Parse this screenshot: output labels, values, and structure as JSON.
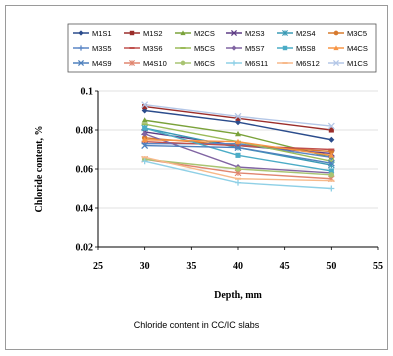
{
  "chart_data": {
    "type": "line",
    "title": "",
    "xlabel": "Depth, mm",
    "ylabel": "Chloride content, %",
    "xlim": [
      25,
      55
    ],
    "ylim": [
      0.02,
      0.1
    ],
    "xticks": [
      "25",
      "30",
      "35",
      "40",
      "45",
      "50",
      "55"
    ],
    "yticks": [
      "0.02",
      "0.04",
      "0.06",
      "0.08",
      "0.1"
    ],
    "grid": "horizontal",
    "legend_position": "top",
    "x": [
      30,
      40,
      50
    ],
    "series": [
      {
        "name": "M1S1",
        "color": "#2b4c8c",
        "marker": "diamond",
        "values": [
          0.09,
          0.084,
          0.075
        ]
      },
      {
        "name": "M1S2",
        "color": "#9b2d2a",
        "marker": "square",
        "values": [
          0.092,
          0.086,
          0.08
        ]
      },
      {
        "name": "M2CS",
        "color": "#7aa23a",
        "marker": "triangle",
        "values": [
          0.085,
          0.078,
          0.066
        ]
      },
      {
        "name": "M2S3",
        "color": "#5e3c85",
        "marker": "x",
        "values": [
          0.079,
          0.072,
          0.068
        ]
      },
      {
        "name": "M2S4",
        "color": "#3a9ab5",
        "marker": "star",
        "values": [
          0.081,
          0.071,
          0.062
        ]
      },
      {
        "name": "M3C5",
        "color": "#d77a2e",
        "marker": "circle",
        "values": [
          0.076,
          0.072,
          0.069
        ]
      },
      {
        "name": "M3S5",
        "color": "#5b86c5",
        "marker": "plus",
        "values": [
          0.073,
          0.073,
          0.066
        ]
      },
      {
        "name": "M3S6",
        "color": "#c0504d",
        "marker": "dash",
        "values": [
          0.074,
          0.072,
          0.07
        ]
      },
      {
        "name": "M5CS",
        "color": "#9bbb59",
        "marker": "dash",
        "values": [
          0.083,
          0.074,
          0.064
        ]
      },
      {
        "name": "M5S7",
        "color": "#8064a2",
        "marker": "diamond",
        "values": [
          0.078,
          0.061,
          0.058
        ]
      },
      {
        "name": "M5S8",
        "color": "#4bacc6",
        "marker": "square",
        "values": [
          0.081,
          0.067,
          0.059
        ]
      },
      {
        "name": "M4CS",
        "color": "#f79646",
        "marker": "triangle",
        "values": [
          0.075,
          0.074,
          0.067
        ]
      },
      {
        "name": "M4S9",
        "color": "#4f81bd",
        "marker": "x",
        "values": [
          0.072,
          0.071,
          0.063
        ]
      },
      {
        "name": "M4S10",
        "color": "#e0856f",
        "marker": "star",
        "values": [
          0.065,
          0.058,
          0.055
        ]
      },
      {
        "name": "M6CS",
        "color": "#a9c472",
        "marker": "circle",
        "values": [
          0.065,
          0.06,
          0.057
        ]
      },
      {
        "name": "M6S11",
        "color": "#8fd0e6",
        "marker": "plus",
        "values": [
          0.064,
          0.053,
          0.05
        ]
      },
      {
        "name": "M6S12",
        "color": "#f7b98a",
        "marker": "dash",
        "values": [
          0.066,
          0.055,
          0.054
        ]
      },
      {
        "name": "M1CS",
        "color": "#b4c7e7",
        "marker": "x",
        "values": [
          0.093,
          0.087,
          0.082
        ]
      }
    ]
  },
  "caption": "Chloride content in CC/IC slabs"
}
